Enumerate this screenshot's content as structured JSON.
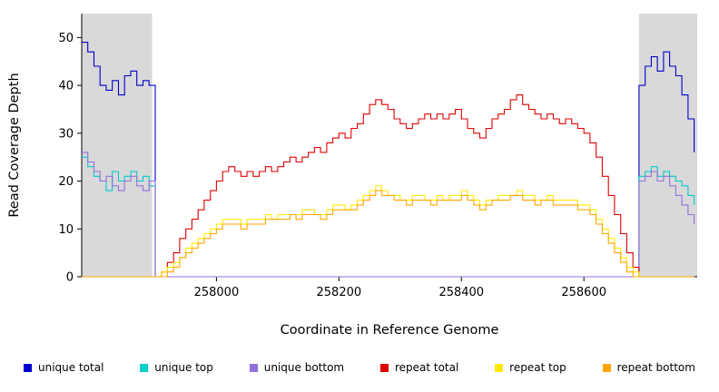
{
  "figure": {
    "background": "#ffffff",
    "shaded_region_color": "#d9d9d9",
    "axis_color": "#000000"
  },
  "chart_data": {
    "type": "line",
    "title": "",
    "xlabel": "Coordinate in Reference Genome",
    "ylabel": "Read Coverage Depth",
    "xlim": [
      257780,
      258785
    ],
    "ylim": [
      0,
      55
    ],
    "x_ticks": [
      258000,
      258200,
      258400,
      258600
    ],
    "y_ticks": [
      0,
      10,
      20,
      30,
      40,
      50
    ],
    "grid": false,
    "legend_position": "bottom",
    "line_style": "step",
    "shaded_regions": [
      {
        "x0": 257780,
        "x1": 257895
      },
      {
        "x0": 258690,
        "x1": 258785
      }
    ],
    "x_start": 257780,
    "x_step": 10,
    "series": [
      {
        "name": "unique total",
        "color": "#0000CC",
        "values": [
          49,
          47,
          44,
          40,
          39,
          41,
          38,
          42,
          43,
          40,
          41,
          40,
          0,
          0,
          0,
          0,
          0,
          0,
          0,
          0,
          0,
          0,
          0,
          0,
          0,
          0,
          0,
          0,
          0,
          0,
          0,
          0,
          0,
          0,
          0,
          0,
          0,
          0,
          0,
          0,
          0,
          0,
          0,
          0,
          0,
          0,
          0,
          0,
          0,
          0,
          0,
          0,
          0,
          0,
          0,
          0,
          0,
          0,
          0,
          0,
          0,
          0,
          0,
          0,
          0,
          0,
          0,
          0,
          0,
          0,
          0,
          0,
          0,
          0,
          0,
          0,
          0,
          0,
          0,
          0,
          0,
          0,
          0,
          0,
          0,
          0,
          0,
          0,
          0,
          0,
          0,
          40,
          44,
          46,
          43,
          47,
          44,
          42,
          38,
          33,
          26
        ]
      },
      {
        "name": "unique top",
        "color": "#00CDCD",
        "values": [
          25,
          23,
          21,
          20,
          18,
          22,
          20,
          21,
          22,
          20,
          21,
          19,
          0,
          0,
          0,
          0,
          0,
          0,
          0,
          0,
          0,
          0,
          0,
          0,
          0,
          0,
          0,
          0,
          0,
          0,
          0,
          0,
          0,
          0,
          0,
          0,
          0,
          0,
          0,
          0,
          0,
          0,
          0,
          0,
          0,
          0,
          0,
          0,
          0,
          0,
          0,
          0,
          0,
          0,
          0,
          0,
          0,
          0,
          0,
          0,
          0,
          0,
          0,
          0,
          0,
          0,
          0,
          0,
          0,
          0,
          0,
          0,
          0,
          0,
          0,
          0,
          0,
          0,
          0,
          0,
          0,
          0,
          0,
          0,
          0,
          0,
          0,
          0,
          0,
          0,
          0,
          21,
          22,
          23,
          21,
          22,
          21,
          20,
          19,
          17,
          15
        ]
      },
      {
        "name": "unique bottom",
        "color": "#9370DB",
        "values": [
          26,
          24,
          22,
          20,
          21,
          19,
          18,
          20,
          21,
          19,
          18,
          20,
          0,
          0,
          0,
          0,
          0,
          0,
          0,
          0,
          0,
          0,
          0,
          0,
          0,
          0,
          0,
          0,
          0,
          0,
          0,
          0,
          0,
          0,
          0,
          0,
          0,
          0,
          0,
          0,
          0,
          0,
          0,
          0,
          0,
          0,
          0,
          0,
          0,
          0,
          0,
          0,
          0,
          0,
          0,
          0,
          0,
          0,
          0,
          0,
          0,
          0,
          0,
          0,
          0,
          0,
          0,
          0,
          0,
          0,
          0,
          0,
          0,
          0,
          0,
          0,
          0,
          0,
          0,
          0,
          0,
          0,
          0,
          0,
          0,
          0,
          0,
          0,
          0,
          0,
          0,
          20,
          21,
          22,
          20,
          21,
          19,
          17,
          15,
          13,
          11
        ]
      },
      {
        "name": "repeat total",
        "color": "#E00000",
        "values": [
          0,
          0,
          0,
          0,
          0,
          0,
          0,
          0,
          0,
          0,
          0,
          0,
          0,
          1,
          3,
          5,
          8,
          10,
          12,
          14,
          16,
          18,
          20,
          22,
          23,
          22,
          21,
          22,
          21,
          22,
          23,
          22,
          23,
          24,
          25,
          24,
          25,
          26,
          27,
          26,
          28,
          29,
          30,
          29,
          31,
          32,
          34,
          36,
          37,
          36,
          35,
          33,
          32,
          31,
          32,
          33,
          34,
          33,
          34,
          33,
          34,
          35,
          33,
          31,
          30,
          29,
          31,
          33,
          34,
          35,
          37,
          38,
          36,
          35,
          34,
          33,
          34,
          33,
          32,
          33,
          32,
          31,
          30,
          28,
          25,
          21,
          17,
          13,
          9,
          5,
          2,
          0,
          0,
          0,
          0,
          0,
          0,
          0,
          0,
          0,
          0
        ]
      },
      {
        "name": "repeat top",
        "color": "#FFEB00",
        "values": [
          0,
          0,
          0,
          0,
          0,
          0,
          0,
          0,
          0,
          0,
          0,
          0,
          0,
          1,
          2,
          3,
          4,
          6,
          7,
          8,
          9,
          10,
          11,
          12,
          12,
          12,
          11,
          12,
          12,
          12,
          13,
          12,
          13,
          13,
          13,
          13,
          14,
          14,
          13,
          13,
          14,
          15,
          15,
          14,
          15,
          16,
          17,
          18,
          19,
          18,
          17,
          17,
          16,
          16,
          17,
          17,
          16,
          16,
          17,
          16,
          17,
          17,
          18,
          17,
          16,
          15,
          16,
          16,
          17,
          17,
          17,
          18,
          17,
          17,
          16,
          16,
          17,
          16,
          16,
          16,
          16,
          15,
          15,
          14,
          12,
          10,
          8,
          6,
          4,
          2,
          1,
          0,
          0,
          0,
          0,
          0,
          0,
          0,
          0,
          0,
          0
        ]
      },
      {
        "name": "repeat bottom",
        "color": "#FFA500",
        "values": [
          0,
          0,
          0,
          0,
          0,
          0,
          0,
          0,
          0,
          0,
          0,
          0,
          0,
          0,
          1,
          2,
          4,
          5,
          6,
          7,
          8,
          9,
          10,
          11,
          11,
          11,
          10,
          11,
          11,
          11,
          12,
          12,
          12,
          12,
          13,
          12,
          13,
          13,
          13,
          12,
          13,
          14,
          14,
          14,
          14,
          15,
          16,
          17,
          18,
          17,
          17,
          16,
          16,
          15,
          16,
          16,
          16,
          15,
          16,
          16,
          16,
          16,
          17,
          16,
          15,
          14,
          15,
          16,
          16,
          16,
          17,
          17,
          16,
          16,
          15,
          16,
          16,
          15,
          15,
          15,
          15,
          14,
          14,
          13,
          11,
          9,
          7,
          5,
          3,
          1,
          0,
          0,
          0,
          0,
          0,
          0,
          0,
          0,
          0,
          0,
          0
        ]
      }
    ]
  }
}
